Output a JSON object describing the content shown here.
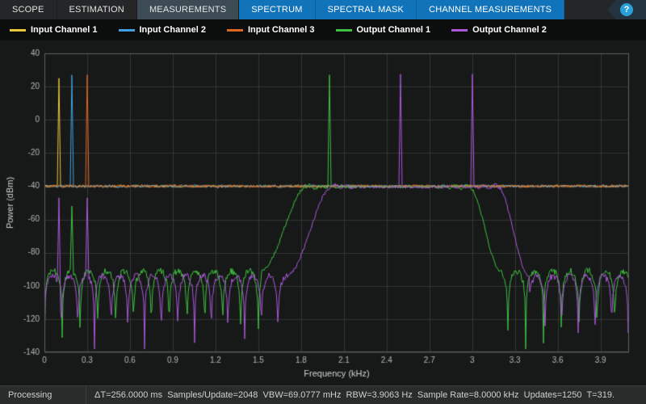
{
  "tabs": {
    "items": [
      {
        "label": "SCOPE",
        "state": "normal"
      },
      {
        "label": "ESTIMATION",
        "state": "normal"
      },
      {
        "label": "MEASUREMENTS",
        "state": "selected"
      },
      {
        "label": "SPECTRUM",
        "state": "contextual"
      },
      {
        "label": "SPECTRAL MASK",
        "state": "contextual"
      },
      {
        "label": "CHANNEL MEASUREMENTS",
        "state": "contextual"
      }
    ],
    "help_label": "?"
  },
  "legend": {
    "items": [
      {
        "label": "Input Channel 1",
        "color": "#e9c63b"
      },
      {
        "label": "Input Channel 2",
        "color": "#419fdd"
      },
      {
        "label": "Input Channel 3",
        "color": "#dc6721"
      },
      {
        "label": "Output Channel 1",
        "color": "#3fbf3f"
      },
      {
        "label": "Output Channel 2",
        "color": "#ab57d8"
      }
    ]
  },
  "chart_data": {
    "type": "line",
    "title": "",
    "xlabel": "Frequency (kHz)",
    "ylabel": "Power (dBm)",
    "xlim": [
      0,
      4.1
    ],
    "ylim": [
      -140,
      40
    ],
    "xticks": [
      0,
      0.3,
      0.6,
      0.9,
      1.2,
      1.5,
      1.8,
      2.1,
      2.4,
      2.7,
      3,
      3.3,
      3.6,
      3.9
    ],
    "yticks": [
      40,
      20,
      0,
      -20,
      -40,
      -60,
      -80,
      -100,
      -120,
      -140
    ],
    "grid": true,
    "legend_position": "top",
    "colors": {
      "plot_bg": "#171919",
      "grid": "#333636",
      "axis_border": "#5c5f5f",
      "tick_text": "#b6b6b6",
      "label_text": "#d0d0d0"
    },
    "series": [
      {
        "name": "Input Channel 1",
        "color": "#e9c63b",
        "kind": "flat",
        "noise_floor_dbm": -40,
        "tones": [
          {
            "f_khz": 0.1,
            "peak_dbm": 25
          }
        ]
      },
      {
        "name": "Input Channel 2",
        "color": "#419fdd",
        "kind": "flat",
        "noise_floor_dbm": -40,
        "tones": [
          {
            "f_khz": 0.19,
            "peak_dbm": 27
          }
        ]
      },
      {
        "name": "Input Channel 3",
        "color": "#dc6721",
        "kind": "flat",
        "noise_floor_dbm": -40,
        "tones": [
          {
            "f_khz": 0.3,
            "peak_dbm": 27
          }
        ]
      },
      {
        "name": "Output Channel 1",
        "color": "#3fbf3f",
        "kind": "bandpass",
        "passband_dbm": -40.5,
        "stopband_top_dbm": -91,
        "lobe_period_khz": 0.125,
        "band_khz": [
          1.52,
          1.84,
          2.98,
          3.2
        ],
        "tones": [
          {
            "f_khz": 2.0,
            "peak_dbm": 27
          },
          {
            "f_khz": 0.19,
            "peak_dbm": -52
          }
        ]
      },
      {
        "name": "Output Channel 2",
        "color": "#ab57d8",
        "kind": "bandpass",
        "passband_dbm": -40.5,
        "stopband_top_dbm": -94,
        "lobe_period_khz": 0.117,
        "band_khz": [
          1.7,
          2.02,
          3.18,
          3.4
        ],
        "tones": [
          {
            "f_khz": 2.5,
            "peak_dbm": 27.5
          },
          {
            "f_khz": 3.0,
            "peak_dbm": 27.5
          },
          {
            "f_khz": 0.1,
            "peak_dbm": -47
          },
          {
            "f_khz": 0.3,
            "peak_dbm": -47
          }
        ]
      }
    ]
  },
  "status_bar": {
    "state": "Processing",
    "stats": "ΔT=256.0000 ms  Samples/Update=2048  VBW=69.0777 mHz  RBW=3.9063 Hz  Sample Rate=8.0000 kHz  Updates=1250  T=319."
  }
}
